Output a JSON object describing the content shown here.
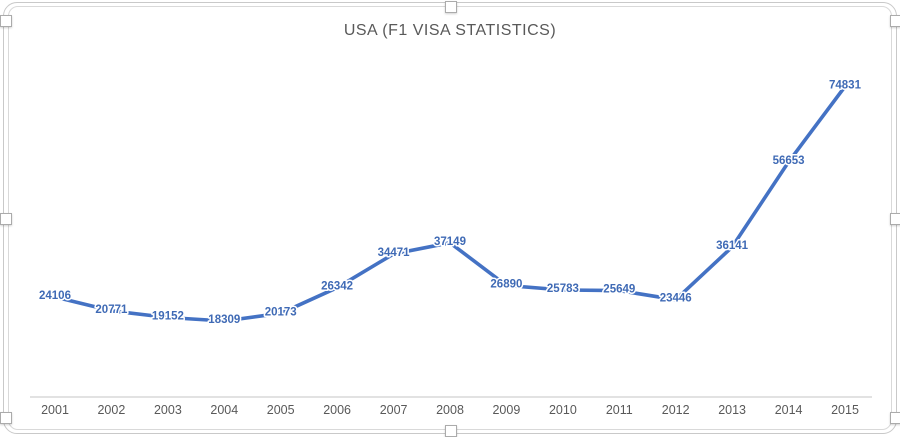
{
  "chart_data": {
    "type": "line",
    "title": "USA (F1 VISA STATISTICS)",
    "x": [
      "2001",
      "2002",
      "2003",
      "2004",
      "2005",
      "2006",
      "2007",
      "2008",
      "2009",
      "2010",
      "2011",
      "2012",
      "2013",
      "2014",
      "2015"
    ],
    "values": [
      24106,
      20771,
      19152,
      18309,
      20173,
      26342,
      34471,
      37149,
      26890,
      25783,
      25649,
      23446,
      36141,
      56653,
      74831
    ],
    "ylim": [
      0,
      80000
    ],
    "grid": false,
    "legend": "none",
    "data_label_position": "center",
    "colors": {
      "line": "#4472C4",
      "data_label": "#3F6AB5",
      "title": "#595959",
      "axis_text": "#595959",
      "axis_line": "#d9d9d9",
      "chart_border": "#d9d9d9"
    }
  }
}
